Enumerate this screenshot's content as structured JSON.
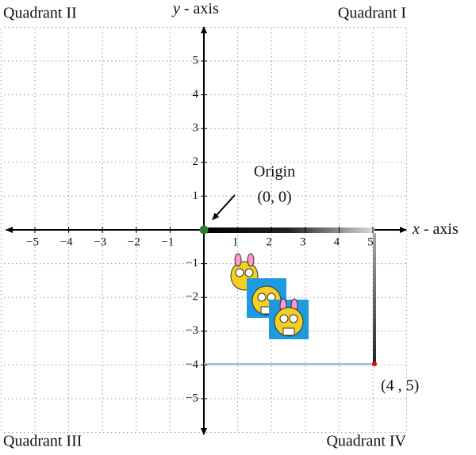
{
  "quadrants": {
    "first": "Quadrant I",
    "second": "Quadrant II",
    "third": "Quadrant III",
    "fourth": "Quadrant IV"
  },
  "axes": {
    "x": {
      "variable": "x",
      "text": " - axis"
    },
    "y": {
      "variable": "y",
      "text": " - axis"
    }
  },
  "x_ticks": [
    "−5",
    "−4",
    "−3",
    "−2",
    "−1",
    "1",
    "2",
    "3",
    "4",
    "5"
  ],
  "y_ticks": [
    "5",
    "4",
    "3",
    "2",
    "1",
    "−1",
    "−2",
    "−3",
    "−4",
    "−5"
  ],
  "origin": {
    "label": "Origin",
    "coords": "(0, 0)"
  },
  "point_label": "(4 , 5)"
}
